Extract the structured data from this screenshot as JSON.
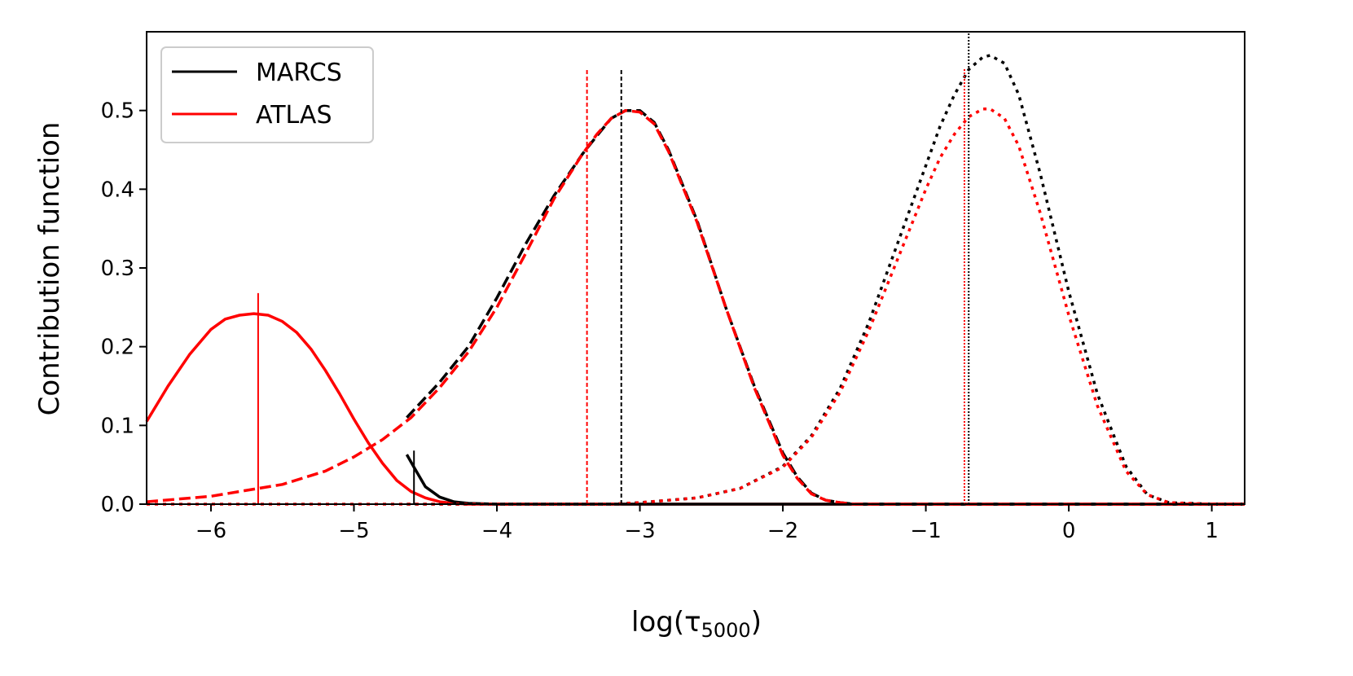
{
  "chart_data": {
    "type": "line",
    "title": "",
    "xlabel": "log(τ",
    "xlabel_sub": "5000",
    "xlabel_close": ")",
    "ylabel": "Contribution function",
    "xlim": [
      -6.45,
      1.23
    ],
    "ylim": [
      0,
      0.6
    ],
    "grid": false,
    "legend_position": "top-left",
    "x_ticks": [
      {
        "value": -6,
        "label": "−6"
      },
      {
        "value": -5,
        "label": "−5"
      },
      {
        "value": -4,
        "label": "−4"
      },
      {
        "value": -3,
        "label": "−3"
      },
      {
        "value": -2,
        "label": "−2"
      },
      {
        "value": -1,
        "label": "−1"
      },
      {
        "value": 0,
        "label": "0"
      },
      {
        "value": 1,
        "label": "1"
      }
    ],
    "y_ticks": [
      {
        "value": 0.0,
        "label": "0.0"
      },
      {
        "value": 0.1,
        "label": "0.1"
      },
      {
        "value": 0.2,
        "label": "0.2"
      },
      {
        "value": 0.3,
        "label": "0.3"
      },
      {
        "value": 0.4,
        "label": "0.4"
      },
      {
        "value": 0.5,
        "label": "0.5"
      }
    ],
    "legend": [
      {
        "label": "MARCS",
        "color": "#000000"
      },
      {
        "label": "ATLAS",
        "color": "#ff0000"
      }
    ],
    "series": [
      {
        "color": "#ff0000",
        "style": "solid",
        "x": [
          -6.45,
          -6.3,
          -6.15,
          -6.0,
          -5.9,
          -5.8,
          -5.7,
          -5.6,
          -5.5,
          -5.4,
          -5.3,
          -5.2,
          -5.1,
          -5.0,
          -4.9,
          -4.8,
          -4.7,
          -4.6,
          -4.5,
          -4.4,
          -4.3,
          -4.2,
          -4.0,
          -3.5,
          -2.5,
          -1.5,
          -0.5,
          0.5,
          1.23
        ],
        "y": [
          0.105,
          0.15,
          0.19,
          0.222,
          0.235,
          0.24,
          0.242,
          0.24,
          0.232,
          0.218,
          0.197,
          0.17,
          0.14,
          0.108,
          0.078,
          0.052,
          0.03,
          0.016,
          0.008,
          0.003,
          0.001,
          0.0,
          0.0,
          0.0,
          0.0,
          0.0,
          0.0,
          0.0,
          0.0
        ]
      },
      {
        "color": "#000000",
        "style": "solid",
        "x": [
          -4.63,
          -4.58,
          -4.5,
          -4.4,
          -4.3,
          -4.2,
          -4.0,
          -3.0,
          -2.0,
          -1.0,
          0.0,
          1.23
        ],
        "y": [
          0.063,
          0.047,
          0.022,
          0.009,
          0.003,
          0.001,
          0.0,
          0.0,
          0.0,
          0.0,
          0.0,
          0.0
        ]
      },
      {
        "color": "#000000",
        "style": "dashed",
        "x": [
          -4.63,
          -4.4,
          -4.2,
          -4.0,
          -3.8,
          -3.6,
          -3.4,
          -3.3,
          -3.2,
          -3.1,
          -3.0,
          -2.9,
          -2.8,
          -2.6,
          -2.4,
          -2.2,
          -2.0,
          -1.9,
          -1.8,
          -1.7,
          -1.6,
          -1.5,
          -1.2,
          -0.8,
          0.0,
          1.23
        ],
        "y": [
          0.11,
          0.155,
          0.2,
          0.262,
          0.33,
          0.392,
          0.445,
          0.468,
          0.49,
          0.5,
          0.5,
          0.485,
          0.45,
          0.36,
          0.25,
          0.15,
          0.065,
          0.035,
          0.014,
          0.005,
          0.002,
          0.0,
          0.0,
          0.0,
          0.0,
          0.0
        ]
      },
      {
        "color": "#ff0000",
        "style": "dashed",
        "x": [
          -6.45,
          -6.0,
          -5.5,
          -5.2,
          -5.0,
          -4.8,
          -4.6,
          -4.4,
          -4.2,
          -4.0,
          -3.8,
          -3.6,
          -3.4,
          -3.3,
          -3.2,
          -3.1,
          -3.0,
          -2.9,
          -2.8,
          -2.6,
          -2.4,
          -2.2,
          -2.0,
          -1.9,
          -1.8,
          -1.7,
          -1.6,
          -1.5,
          -1.2,
          -0.8,
          0.0,
          1.23
        ],
        "y": [
          0.003,
          0.01,
          0.025,
          0.042,
          0.06,
          0.082,
          0.11,
          0.148,
          0.193,
          0.25,
          0.318,
          0.388,
          0.445,
          0.47,
          0.49,
          0.5,
          0.498,
          0.483,
          0.448,
          0.358,
          0.25,
          0.148,
          0.062,
          0.033,
          0.013,
          0.005,
          0.002,
          0.0,
          0.0,
          0.0,
          0.0,
          0.0
        ]
      },
      {
        "color": "#000000",
        "style": "dotted",
        "x": [
          -4.63,
          -3.2,
          -3.0,
          -2.6,
          -2.3,
          -2.0,
          -1.8,
          -1.6,
          -1.4,
          -1.2,
          -1.0,
          -0.9,
          -0.8,
          -0.7,
          -0.6,
          -0.55,
          -0.45,
          -0.35,
          -0.2,
          0.0,
          0.2,
          0.4,
          0.55,
          0.7,
          1.0,
          1.23
        ],
        "y": [
          0.0,
          0.0,
          0.002,
          0.008,
          0.02,
          0.048,
          0.087,
          0.147,
          0.23,
          0.33,
          0.43,
          0.48,
          0.52,
          0.552,
          0.568,
          0.57,
          0.56,
          0.52,
          0.42,
          0.27,
          0.14,
          0.048,
          0.012,
          0.002,
          0.0,
          0.0
        ]
      },
      {
        "color": "#ff0000",
        "style": "dotted",
        "x": [
          -6.45,
          -4.0,
          -3.2,
          -3.0,
          -2.6,
          -2.3,
          -2.0,
          -1.8,
          -1.6,
          -1.4,
          -1.2,
          -1.0,
          -0.9,
          -0.8,
          -0.7,
          -0.6,
          -0.55,
          -0.45,
          -0.35,
          -0.2,
          0.0,
          0.2,
          0.4,
          0.55,
          0.7,
          1.0,
          1.23
        ],
        "y": [
          0.0,
          0.0,
          0.0,
          0.002,
          0.008,
          0.02,
          0.047,
          0.085,
          0.142,
          0.22,
          0.31,
          0.4,
          0.44,
          0.47,
          0.492,
          0.502,
          0.502,
          0.49,
          0.455,
          0.37,
          0.24,
          0.125,
          0.042,
          0.012,
          0.002,
          0.0,
          0.0
        ]
      }
    ],
    "vertical_markers": [
      {
        "x": -5.67,
        "y_top": 0.268,
        "color": "#ff0000",
        "style": "solid"
      },
      {
        "x": -4.58,
        "y_top": 0.068,
        "color": "#000000",
        "style": "solid"
      },
      {
        "x": -3.37,
        "y_top": 0.553,
        "color": "#ff0000",
        "style": "dashed"
      },
      {
        "x": -3.13,
        "y_top": 0.553,
        "color": "#000000",
        "style": "dashed"
      },
      {
        "x": -0.73,
        "y_top": 0.553,
        "color": "#ff0000",
        "style": "dotted"
      },
      {
        "x": -0.7,
        "y_top": 0.6,
        "color": "#000000",
        "style": "dotted"
      }
    ]
  }
}
